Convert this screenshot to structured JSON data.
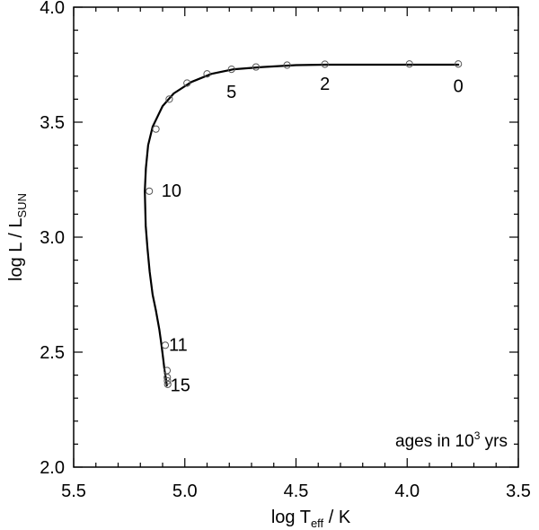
{
  "chart_data": {
    "type": "line",
    "xlabel": {
      "main": "log T",
      "sub": "eff",
      "unit": " / K"
    },
    "ylabel": {
      "main": "log L / L",
      "sub": "SUN"
    },
    "xlim": [
      5.5,
      3.5
    ],
    "ylim": [
      2.0,
      4.0
    ],
    "xticks": [
      5.5,
      5.0,
      4.5,
      4.0,
      3.5
    ],
    "xtick_labels": [
      "5.5",
      "5.0",
      "4.5",
      "4.0",
      "3.5"
    ],
    "yticks": [
      2.0,
      2.5,
      3.0,
      3.5,
      4.0
    ],
    "ytick_labels": [
      "2.0",
      "2.5",
      "3.0",
      "3.5",
      "4.0"
    ],
    "grid": false,
    "annotation": {
      "text": "ages in 10",
      "sup": "3",
      "tail": " yrs"
    },
    "track": {
      "x": [
        3.77,
        3.95,
        4.1,
        4.25,
        4.37,
        4.5,
        4.65,
        4.78,
        4.88,
        4.97,
        5.05,
        5.1,
        5.145,
        5.165,
        5.175,
        5.18,
        5.176,
        5.168,
        5.158,
        5.145,
        5.13,
        5.115,
        5.105,
        5.097,
        5.091,
        5.086,
        5.083,
        5.081
      ],
      "y": [
        3.75,
        3.75,
        3.75,
        3.75,
        3.75,
        3.748,
        3.74,
        3.73,
        3.71,
        3.675,
        3.625,
        3.57,
        3.48,
        3.4,
        3.3,
        3.2,
        3.05,
        2.95,
        2.85,
        2.75,
        2.68,
        2.6,
        2.53,
        2.47,
        2.42,
        2.39,
        2.37,
        2.355
      ]
    },
    "points": {
      "x": [
        3.77,
        3.99,
        4.37,
        4.54,
        4.68,
        4.79,
        4.9,
        4.99,
        5.07,
        5.13,
        5.16,
        5.088,
        5.08,
        5.079,
        5.078,
        5.077
      ],
      "y": [
        3.753,
        3.753,
        3.752,
        3.748,
        3.74,
        3.73,
        3.71,
        3.67,
        3.6,
        3.47,
        3.2,
        2.53,
        2.42,
        2.39,
        2.375,
        2.36
      ]
    },
    "age_labels": [
      {
        "text": "0",
        "x": 3.77,
        "y": 3.63
      },
      {
        "text": "2",
        "x": 4.37,
        "y": 3.64
      },
      {
        "text": "5",
        "x": 4.79,
        "y": 3.605
      },
      {
        "text": "10",
        "x": 5.06,
        "y": 3.175
      },
      {
        "text": "11",
        "x": 5.03,
        "y": 2.505
      },
      {
        "text": "15",
        "x": 5.02,
        "y": 2.33
      }
    ]
  }
}
